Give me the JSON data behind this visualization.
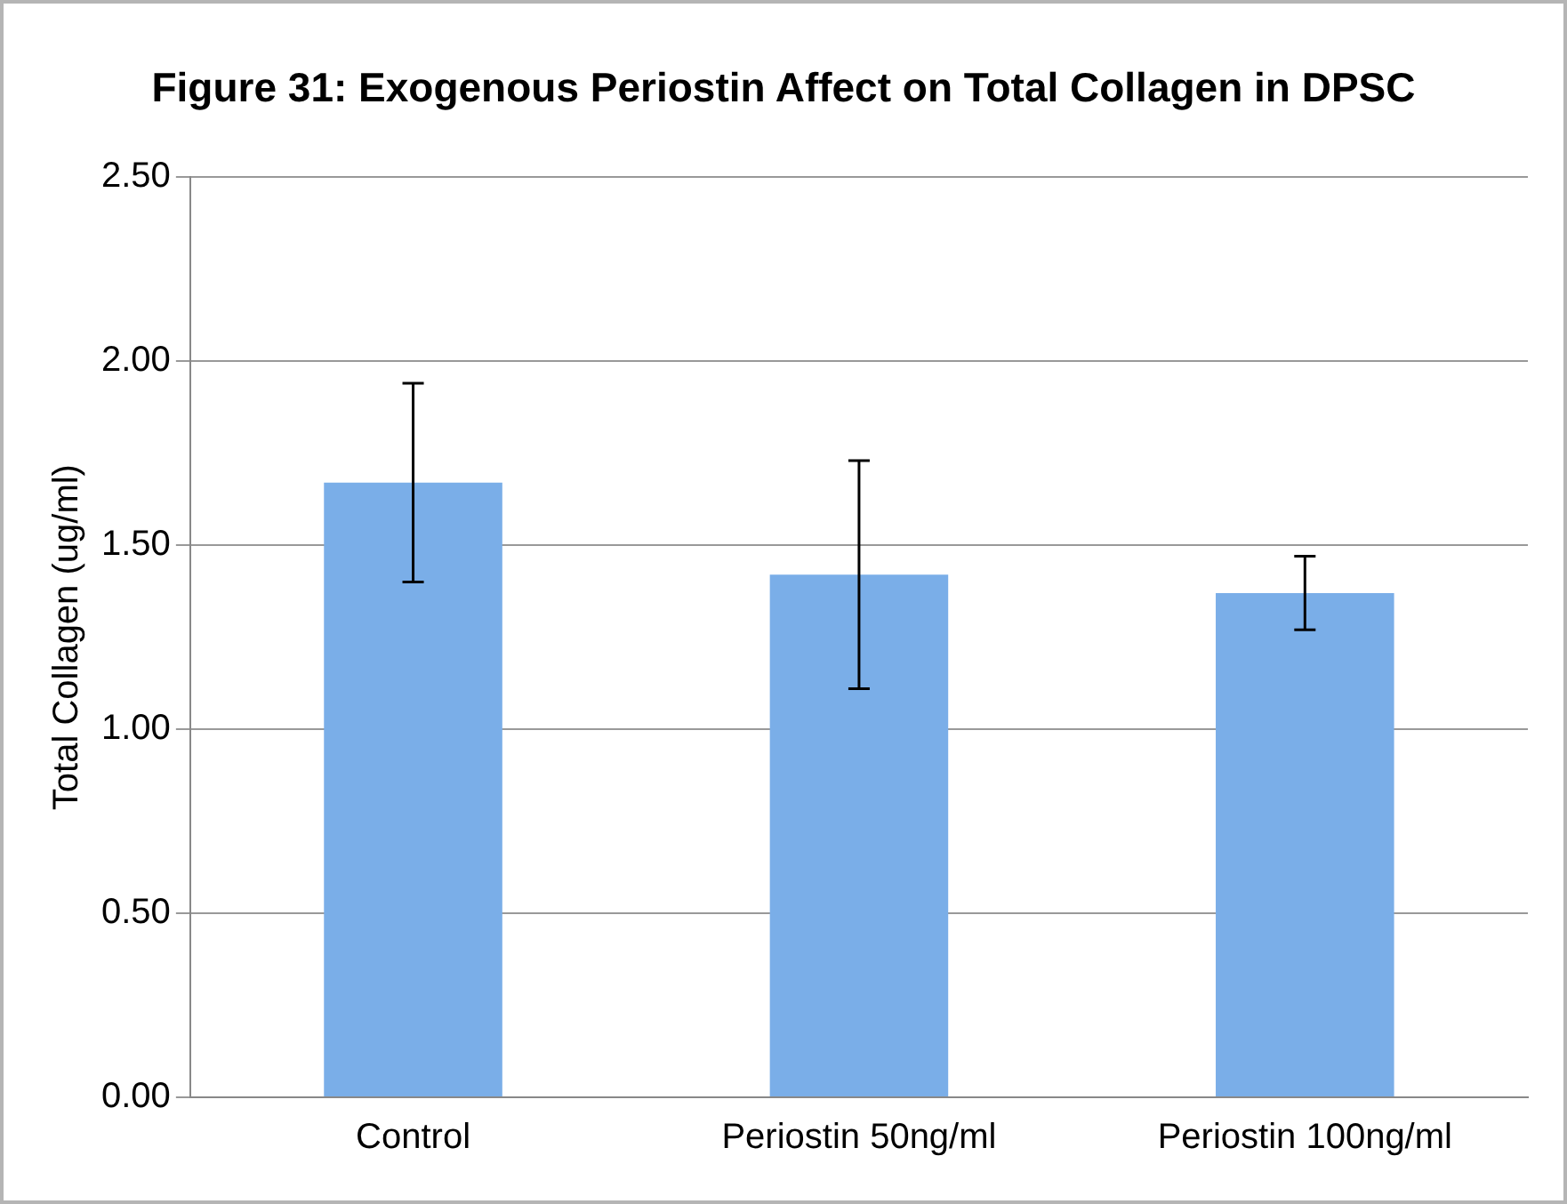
{
  "chart_data": {
    "type": "bar",
    "title": "Figure 31: Exogenous Periostin Affect on Total Collagen in DPSC",
    "ylabel": "Total Collagen (ug/ml)",
    "categories": [
      "Control",
      "Periostin 50ng/ml",
      "Periostin 100ng/ml"
    ],
    "values": [
      1.67,
      1.42,
      1.37
    ],
    "errors": [
      0.27,
      0.31,
      0.1
    ],
    "color": "#7aaee8",
    "ylim": [
      0,
      2.5
    ],
    "yticks": [
      {
        "value": 0,
        "label": "0.00"
      },
      {
        "value": 0.5,
        "label": "0.50"
      },
      {
        "value": 1,
        "label": "1.00"
      },
      {
        "value": 1.5,
        "label": "1.50"
      },
      {
        "value": 2,
        "label": "2.00"
      },
      {
        "value": 2.5,
        "label": "2.50"
      }
    ],
    "grid": "y",
    "legend": false
  }
}
